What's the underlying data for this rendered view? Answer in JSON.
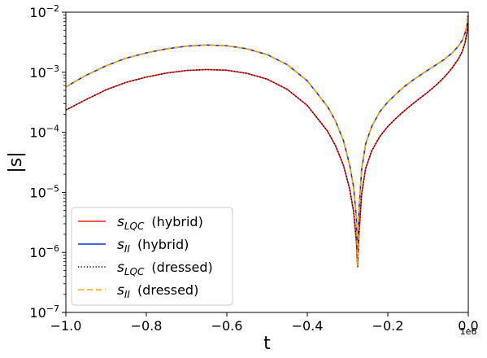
{
  "chart_data": {
    "type": "line",
    "title": "",
    "xlabel": "t",
    "ylabel": "|s|",
    "x_scale_label": "1e6",
    "x_scale": 1000000,
    "xlim": [
      -1000000,
      0
    ],
    "ylim": [
      1e-07,
      0.01
    ],
    "yscale": "log",
    "grid": false,
    "legend_position": "lower-left",
    "x_ticks": [
      {
        "value": -1.0,
        "label": "−1.0"
      },
      {
        "value": -0.8,
        "label": "−0.8"
      },
      {
        "value": -0.6,
        "label": "−0.6"
      },
      {
        "value": -0.4,
        "label": "−0.4"
      },
      {
        "value": -0.2,
        "label": "−0.2"
      },
      {
        "value": 0.0,
        "label": "0.0"
      }
    ],
    "y_ticks": [
      {
        "exp": -7,
        "base": "10",
        "sup": "−7"
      },
      {
        "exp": -6,
        "base": "10",
        "sup": "−6"
      },
      {
        "exp": -5,
        "base": "10",
        "sup": "−5"
      },
      {
        "exp": -4,
        "base": "10",
        "sup": "−4"
      },
      {
        "exp": -3,
        "base": "10",
        "sup": "−3"
      },
      {
        "exp": -2,
        "base": "10",
        "sup": "−2"
      }
    ],
    "x": [
      -1000000,
      -950000,
      -900000,
      -850000,
      -800000,
      -750000,
      -700000,
      -650000,
      -600000,
      -550000,
      -500000,
      -450000,
      -400000,
      -350000,
      -330000,
      -310000,
      -295000,
      -285000,
      -278000,
      -275000,
      -272000,
      -265000,
      -255000,
      -240000,
      -220000,
      -200000,
      -180000,
      -160000,
      -140000,
      -120000,
      -100000,
      -80000,
      -60000,
      -40000,
      -25000,
      -15000,
      -8000,
      -3000,
      -1000
    ],
    "series": [
      {
        "name_main": "s",
        "name_sub": "LQC",
        "name_note": "(hybrid)",
        "color": "#ff2020",
        "dash": "solid",
        "values": [
          0.000235,
          0.00035,
          0.00051,
          0.00068,
          0.00083,
          0.00097,
          0.00107,
          0.00111,
          0.00108,
          0.00096,
          0.00077,
          0.00052,
          0.00028,
          0.000105,
          6e-05,
          2.8e-05,
          1.15e-05,
          4.8e-06,
          1.5e-06,
          5.8e-07,
          1.8e-06,
          9.5e-06,
          2.5e-05,
          4.9e-05,
          8.5e-05,
          0.000125,
          0.00017,
          0.000225,
          0.00029,
          0.00037,
          0.00047,
          0.00061,
          0.00082,
          0.00118,
          0.00165,
          0.0022,
          0.0031,
          0.0047,
          0.0075
        ]
      },
      {
        "name_main": "s",
        "name_sub": "II",
        "name_note": "(hybrid)",
        "color": "#1030d0",
        "dash": "solid",
        "values": [
          0.00057,
          0.00089,
          0.00128,
          0.00172,
          0.0021,
          0.00245,
          0.00272,
          0.00284,
          0.00276,
          0.00246,
          0.00197,
          0.00134,
          0.00072,
          0.00027,
          0.000155,
          7.2e-05,
          2.9e-05,
          1.22e-05,
          3.8e-06,
          5.8e-07,
          4.6e-06,
          2.4e-05,
          6.4e-05,
          0.000125,
          0.00022,
          0.00032,
          0.00043,
          0.00057,
          0.00072,
          0.00089,
          0.00109,
          0.00133,
          0.00163,
          0.0021,
          0.0027,
          0.0034,
          0.0045,
          0.0062,
          0.0088
        ]
      },
      {
        "name_main": "s",
        "name_sub": "LQC",
        "name_note": "(dressed)",
        "color": "#000000",
        "dash": "1.2 2.4",
        "values": [
          0.000235,
          0.00035,
          0.00051,
          0.00068,
          0.00083,
          0.00097,
          0.00107,
          0.00111,
          0.00108,
          0.00096,
          0.00077,
          0.00052,
          0.00028,
          0.000105,
          6e-05,
          2.8e-05,
          1.15e-05,
          4.8e-06,
          1.5e-06,
          5.8e-07,
          1.8e-06,
          9.5e-06,
          2.5e-05,
          4.9e-05,
          8.5e-05,
          0.000125,
          0.00017,
          0.000225,
          0.00029,
          0.00037,
          0.00047,
          0.00061,
          0.00082,
          0.00118,
          0.00165,
          0.0022,
          0.0031,
          0.0047,
          0.0075
        ]
      },
      {
        "name_main": "s",
        "name_sub": "II",
        "name_note": "(dressed)",
        "color": "#ffa500",
        "dash": "7 4",
        "values": [
          0.00057,
          0.00089,
          0.00128,
          0.00172,
          0.0021,
          0.00245,
          0.00272,
          0.00284,
          0.00276,
          0.00246,
          0.00197,
          0.00134,
          0.00072,
          0.00027,
          0.000155,
          7.2e-05,
          2.9e-05,
          1.22e-05,
          3.8e-06,
          5.8e-07,
          4.6e-06,
          2.4e-05,
          6.4e-05,
          0.000125,
          0.00022,
          0.00032,
          0.00043,
          0.00057,
          0.00072,
          0.00089,
          0.00109,
          0.00133,
          0.00163,
          0.0021,
          0.0027,
          0.0034,
          0.0045,
          0.0062,
          0.0088
        ]
      }
    ]
  }
}
